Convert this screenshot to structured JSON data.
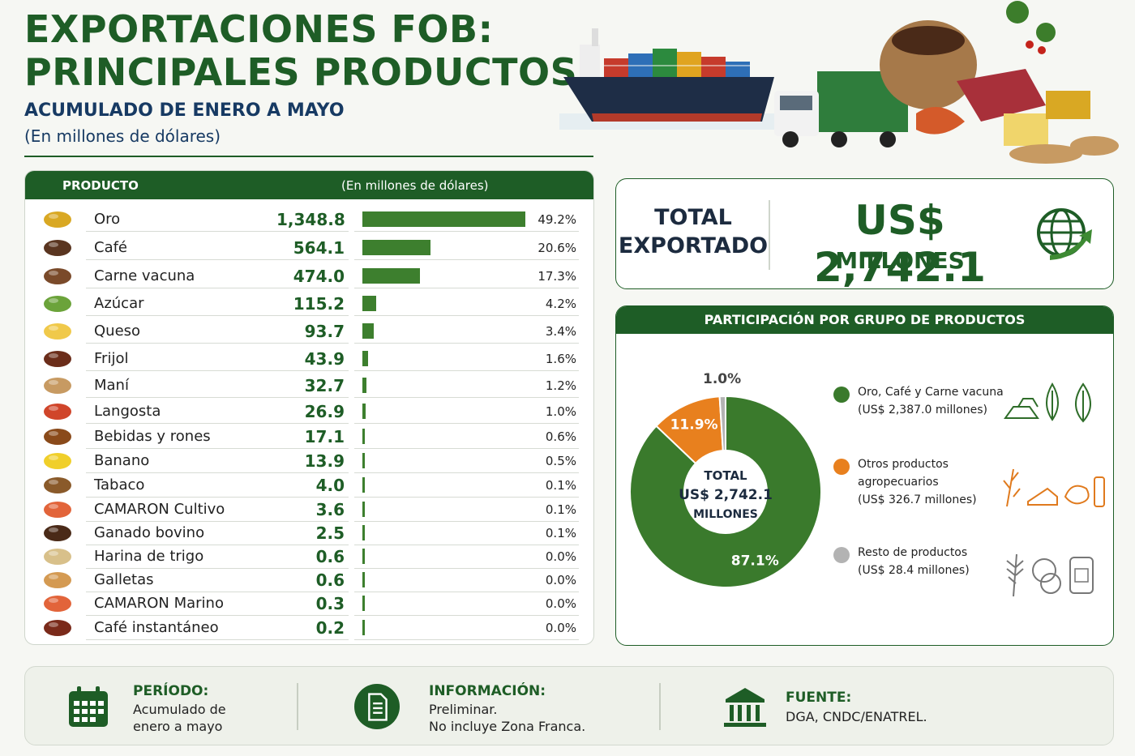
{
  "header": {
    "title_line1": "EXPORTACIONES FOB:",
    "title_line2": "PRINCIPALES PRODUCTOS",
    "subtitle": "ACUMULADO DE ENERO A MAYO",
    "unit_note": "(En millones de dólares)"
  },
  "table": {
    "col_product": "PRODUCTO",
    "col_value": "(En millones de dólares)",
    "rows": [
      {
        "name": "Oro",
        "value": "1,348.8",
        "pct": "49.2%",
        "share": 49.2,
        "icon": "gold-bars-icon"
      },
      {
        "name": "Café",
        "value": "564.1",
        "pct": "20.6%",
        "share": 20.6,
        "icon": "coffee-beans-icon"
      },
      {
        "name": "Carne vacuna",
        "value": "474.0",
        "pct": "17.3%",
        "share": 17.3,
        "icon": "cow-icon"
      },
      {
        "name": "Azúcar",
        "value": "115.2",
        "pct": "4.2%",
        "share": 4.2,
        "icon": "sugarcane-icon"
      },
      {
        "name": "Queso",
        "value": "93.7",
        "pct": "3.4%",
        "share": 3.4,
        "icon": "cheese-icon"
      },
      {
        "name": "Frijol",
        "value": "43.9",
        "pct": "1.6%",
        "share": 1.6,
        "icon": "beans-icon"
      },
      {
        "name": "Maní",
        "value": "32.7",
        "pct": "1.2%",
        "share": 1.2,
        "icon": "peanuts-icon"
      },
      {
        "name": "Langosta",
        "value": "26.9",
        "pct": "1.0%",
        "share": 1.0,
        "icon": "lobster-icon"
      },
      {
        "name": "Bebidas y rones",
        "value": "17.1",
        "pct": "0.6%",
        "share": 0.6,
        "icon": "bottles-icon"
      },
      {
        "name": "Banano",
        "value": "13.9",
        "pct": "0.5%",
        "share": 0.5,
        "icon": "banana-icon"
      },
      {
        "name": "Tabaco",
        "value": "4.0",
        "pct": "0.1%",
        "share": 0.1,
        "icon": "tobacco-leaf-icon"
      },
      {
        "name": "CAMARON Cultivo",
        "value": "3.6",
        "pct": "0.1%",
        "share": 0.1,
        "icon": "shrimp-icon"
      },
      {
        "name": "Ganado bovino",
        "value": "2.5",
        "pct": "0.1%",
        "share": 0.1,
        "icon": "cattle-icon"
      },
      {
        "name": "Harina de trigo",
        "value": "0.6",
        "pct": "0.0%",
        "share": 0.0,
        "icon": "wheat-flour-icon"
      },
      {
        "name": "Galletas",
        "value": "0.6",
        "pct": "0.0%",
        "share": 0.0,
        "icon": "cookies-icon"
      },
      {
        "name": "CAMARON Marino",
        "value": "0.3",
        "pct": "0.0%",
        "share": 0.0,
        "icon": "shrimp-icon"
      },
      {
        "name": "Café instantáneo",
        "value": "0.2",
        "pct": "0.0%",
        "share": 0.0,
        "icon": "coffee-jar-icon"
      }
    ]
  },
  "total": {
    "label_line1": "TOTAL",
    "label_line2": "EXPORTADO",
    "value": "US$ 2,742.1",
    "unit": "MILLONES"
  },
  "share": {
    "title": "PARTICIPACIÓN POR GRUPO DE PRODUCTOS",
    "center_line1": "TOTAL",
    "center_line2": "US$ 2,742.1",
    "center_line3": "MILLONES",
    "groups": [
      {
        "label_line1": "Oro, Café y Carne vacuna",
        "label_line2": "",
        "amount": "(US$ 2,387.0 millones)",
        "pct": "87.1%",
        "color": "#3a7a2c"
      },
      {
        "label_line1": "Otros productos",
        "label_line2": "agropecuarios",
        "amount": "(US$ 326.7 millones)",
        "pct": "11.9%",
        "color": "#e8801e"
      },
      {
        "label_line1": "Resto de productos",
        "label_line2": "",
        "amount": "(US$ 28.4 millones)",
        "pct": "1.0%",
        "color": "#b3b3b3"
      }
    ]
  },
  "footer": {
    "period_title": "PERÍODO:",
    "period_line1": "Acumulado de",
    "period_line2": "enero a mayo",
    "info_title": "INFORMACIÓN:",
    "info_line1": "Preliminar.",
    "info_line2": "No incluye Zona Franca.",
    "source_title": "FUENTE:",
    "source_text": "DGA, CNDC/ENATREL."
  },
  "chart_data": [
    {
      "type": "bar",
      "categories": [
        "Oro",
        "Café",
        "Carne vacuna",
        "Azúcar",
        "Queso",
        "Frijol",
        "Maní",
        "Langosta",
        "Bebidas y rones",
        "Banano",
        "Tabaco",
        "CAMARON Cultivo",
        "Ganado bovino",
        "Harina de trigo",
        "Galletas",
        "CAMARON Marino",
        "Café instantáneo"
      ],
      "values": [
        1348.8,
        564.1,
        474.0,
        115.2,
        93.7,
        43.9,
        32.7,
        26.9,
        17.1,
        13.9,
        4.0,
        3.6,
        2.5,
        0.6,
        0.6,
        0.3,
        0.2
      ],
      "percentages": [
        49.2,
        20.6,
        17.3,
        4.2,
        3.4,
        1.6,
        1.2,
        1.0,
        0.6,
        0.5,
        0.1,
        0.1,
        0.1,
        0.0,
        0.0,
        0.0,
        0.0
      ],
      "orientation": "horizontal"
    },
    {
      "type": "pie",
      "variant": "donut",
      "categories": [
        "Oro, Café y Carne vacuna",
        "Otros productos agropecuarios",
        "Resto de productos"
      ],
      "values": [
        87.1,
        11.9,
        1.0
      ],
      "amounts": [
        2387.0,
        326.7,
        28.4
      ],
      "title": "PARTICIPACIÓN POR GRUPO DE PRODUCTOS",
      "colors": [
        "#3a7a2c",
        "#e8801e",
        "#b3b3b3"
      ]
    }
  ]
}
